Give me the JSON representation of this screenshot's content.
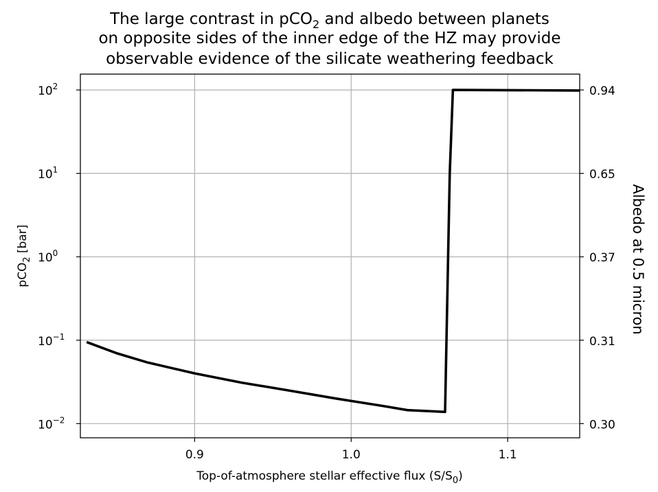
{
  "chart_data": {
    "type": "line",
    "title": {
      "line1_pre": "The large contrast in pCO",
      "line1_sub": "2",
      "line1_post": " and albedo between planets",
      "line2": "on opposite sides of the inner edge of the HZ may provide",
      "line3": "observable evidence of the silicate weathering feedback"
    },
    "xlabel": {
      "pre": "Top-of-atmosphere stellar effective flux (S/S",
      "sub": "0",
      "post": ")"
    },
    "ylabel": {
      "pre": "pCO",
      "sub": "2",
      "post": " [bar]"
    },
    "y2label": "Albedo at 0.5 micron",
    "xlim": [
      0.827,
      1.146
    ],
    "ylim_log10": [
      -2.17,
      2.19
    ],
    "y_scale": "log",
    "grid": true,
    "x_ticks": [
      {
        "value": 0.9,
        "label": "0.9"
      },
      {
        "value": 1.0,
        "label": "1.0"
      },
      {
        "value": 1.1,
        "label": "1.1"
      }
    ],
    "y_ticks": [
      {
        "exp": 2,
        "base": "10",
        "power": "2"
      },
      {
        "exp": 1,
        "base": "10",
        "power": "1"
      },
      {
        "exp": 0,
        "base": "10",
        "power": "0"
      },
      {
        "exp": -1,
        "base": "10",
        "power": "−1"
      },
      {
        "exp": -2,
        "base": "10",
        "power": "−2"
      }
    ],
    "y2_ticks": [
      {
        "exp": 2,
        "label": "0.94"
      },
      {
        "exp": 1,
        "label": "0.65"
      },
      {
        "exp": 0,
        "label": "0.37"
      },
      {
        "exp": -1,
        "label": "0.31"
      },
      {
        "exp": -2,
        "label": "0.30"
      }
    ],
    "series": [
      {
        "color": "#000000",
        "x": [
          0.831,
          0.85,
          0.87,
          0.9,
          0.93,
          0.96,
          0.99,
          1.02,
          1.036,
          1.06,
          1.063,
          1.065,
          1.1,
          1.146
        ],
        "y": [
          0.095,
          0.07,
          0.054,
          0.04,
          0.031,
          0.025,
          0.02,
          0.0163,
          0.0145,
          0.0138,
          10,
          100,
          99.5,
          98.5
        ]
      }
    ]
  }
}
